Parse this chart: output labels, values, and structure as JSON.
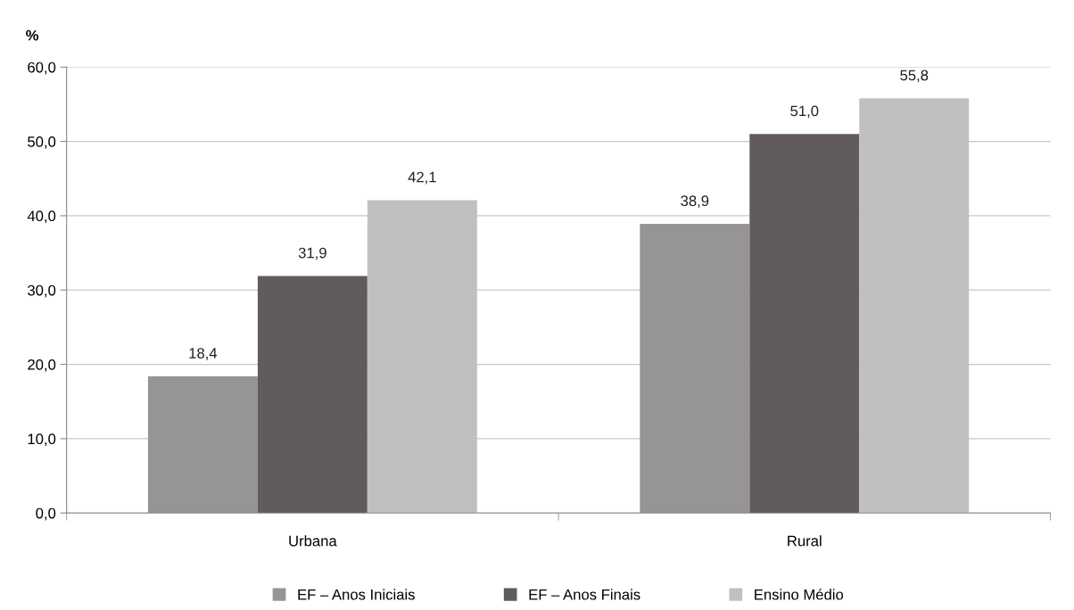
{
  "chart_data": {
    "type": "bar",
    "ylabel": "%",
    "categories": [
      "Urbana",
      "Rural"
    ],
    "series": [
      {
        "name": "EF – Anos Iniciais",
        "color": "#969594",
        "values": [
          18.4,
          38.9
        ],
        "value_labels": [
          "18,4",
          "38,9"
        ]
      },
      {
        "name": "EF – Anos Finais",
        "color": "#615c5b",
        "values": [
          31.9,
          51.0
        ],
        "value_labels": [
          "31,9",
          "51,0"
        ]
      },
      {
        "name": "Ensino Médio",
        "color": "#c0c0c0",
        "values": [
          42.1,
          55.8
        ],
        "value_labels": [
          "42,1",
          "55,8"
        ]
      }
    ],
    "ylim": [
      0,
      60
    ],
    "yticks": [
      {
        "value": 0,
        "label": "0,0"
      },
      {
        "value": 10,
        "label": "10,0"
      },
      {
        "value": 20,
        "label": "20,0"
      },
      {
        "value": 30,
        "label": "30,0"
      },
      {
        "value": 40,
        "label": "40,0"
      },
      {
        "value": 50,
        "label": "50,0"
      },
      {
        "value": 60,
        "label": "60,0"
      }
    ],
    "grid": "y",
    "legend": "bottom"
  }
}
